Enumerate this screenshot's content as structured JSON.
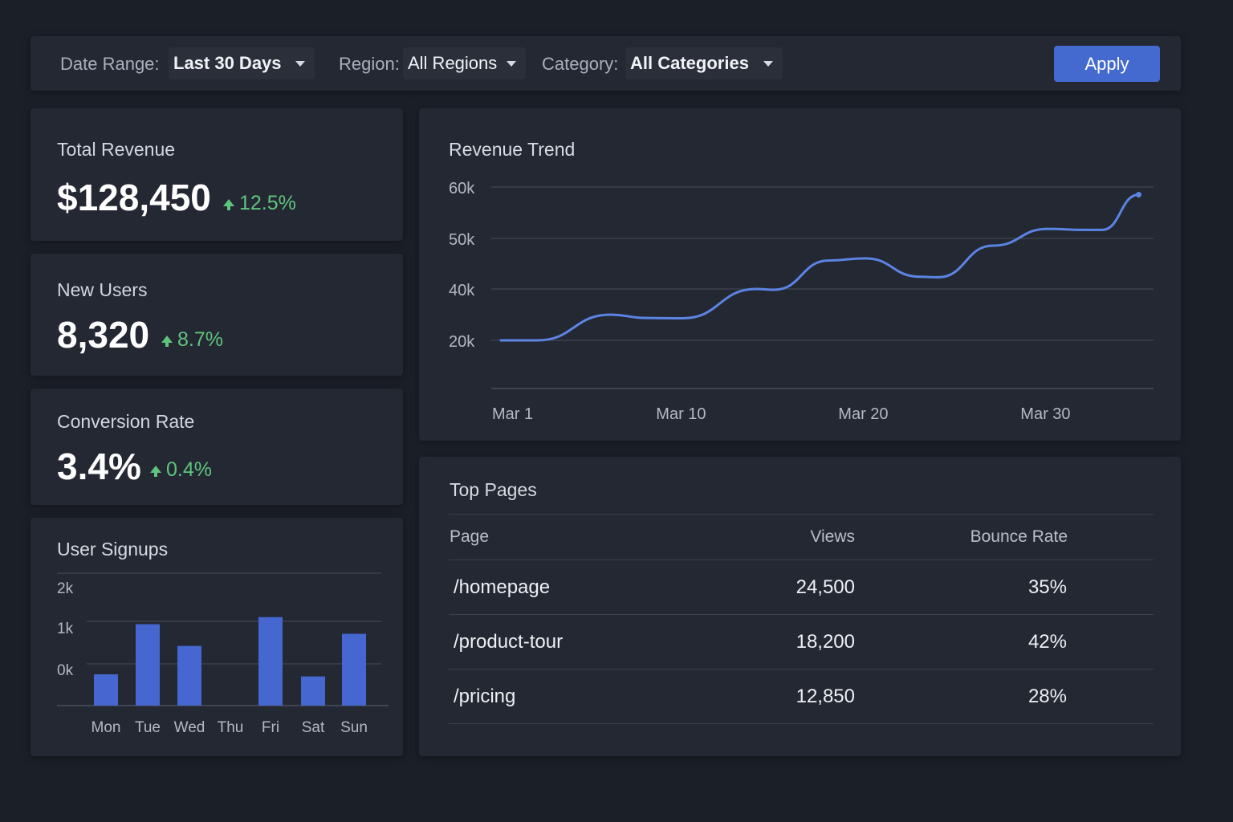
{
  "filters": {
    "date_range": {
      "label": "Date Range:",
      "value": "Last 30 Days"
    },
    "region": {
      "label": "Region:",
      "value": "All Regions"
    },
    "category": {
      "label": "Category:",
      "value": "All Categories"
    },
    "apply_label": "Apply",
    "accent_color": "#4469cf"
  },
  "kpis": [
    {
      "title": "Total Revenue",
      "value": "$128,450",
      "delta": "12.5%",
      "trend": "up"
    },
    {
      "title": "New Users",
      "value": "8,320",
      "delta": "8.7%",
      "trend": "up"
    },
    {
      "title": "Conversion Rate",
      "value": "3.4%",
      "delta": "0.4%",
      "trend": "up"
    }
  ],
  "colors": {
    "positive": "#5fc47d",
    "line": "#5b84e3",
    "bar": "#4567cf"
  },
  "revenue_trend": {
    "title": "Revenue Trend",
    "chart_data": {
      "type": "line",
      "title": "Revenue Trend",
      "y_ticks": [
        "60k",
        "50k",
        "40k",
        "20k"
      ],
      "x_ticks": [
        "Mar 1",
        "Mar 10",
        "Mar 20",
        "Mar 30"
      ],
      "x_tick_days": [
        1,
        10,
        20,
        30
      ],
      "ylim": [
        20000,
        60000
      ],
      "grid": true,
      "series": [
        {
          "x_days": [
            1,
            3,
            7,
            9,
            11,
            15,
            16,
            19,
            21,
            24,
            25,
            28,
            31,
            33,
            34,
            36
          ],
          "values": [
            20000,
            20000,
            30000,
            28700,
            28600,
            40000,
            39700,
            45600,
            46000,
            42400,
            42300,
            48500,
            51800,
            51600,
            51600,
            58500
          ]
        }
      ]
    }
  },
  "user_signups": {
    "title": "User Signups",
    "chart_data": {
      "type": "bar",
      "title": "User Signups",
      "categories": [
        "Mon",
        "Tue",
        "Wed",
        "Thu",
        "Fri",
        "Sat",
        "Sun"
      ],
      "values": [
        -250,
        950,
        430,
        -1050,
        1120,
        -300,
        720
      ],
      "y_ticks": [
        {
          "label": "2k",
          "value": 2000
        },
        {
          "label": "1k",
          "value": 1000
        },
        {
          "label": "0k",
          "value": 0
        }
      ],
      "ylim": [
        -1000,
        1000
      ],
      "grid": true
    }
  },
  "top_pages": {
    "title": "Top Pages",
    "columns": [
      "Page",
      "Views",
      "Bounce Rate"
    ],
    "rows": [
      {
        "page": "/homepage",
        "views": "24,500",
        "bounce": "35%"
      },
      {
        "page": "/product-tour",
        "views": "18,200",
        "bounce": "42%"
      },
      {
        "page": "/pricing",
        "views": "12,850",
        "bounce": "28%"
      }
    ]
  }
}
